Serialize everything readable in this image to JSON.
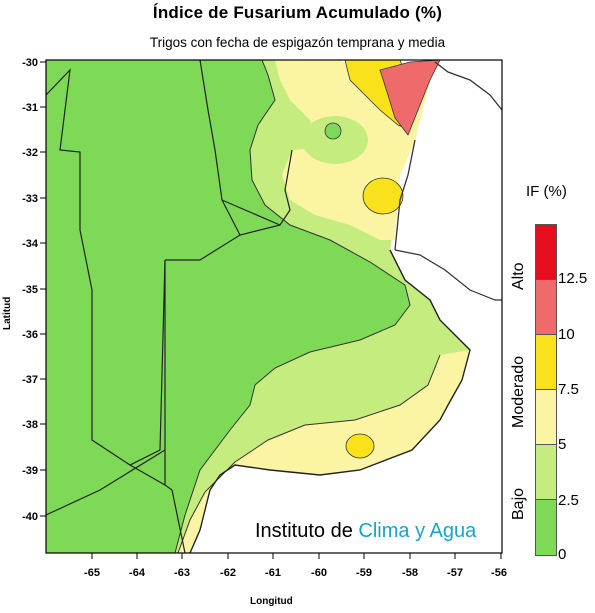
{
  "map": {
    "title": "Índice de Fusarium Acumulado (%)",
    "subtitle": "Trigos con fecha de espigazón temprana y media",
    "x_axis_label": "Longitud",
    "y_axis_label": "Latitud",
    "x_ticks": [
      "-65",
      "-64",
      "-63",
      "-62",
      "-61",
      "-60",
      "-59",
      "-58",
      "-57",
      "-56"
    ],
    "y_ticks": [
      "-30",
      "-31",
      "-32",
      "-33",
      "-34",
      "-35",
      "-36",
      "-37",
      "-38",
      "-39",
      "-40"
    ],
    "region_shown": "Pampas region of Argentina and Uruguay border",
    "zone_colors": {
      "bajo_0_2_5": "#7ed957",
      "bajo_2_5_5": "#c5ec7e",
      "moderado_5_7_5": "#fbf5a3",
      "moderado_7_5_10": "#f9e11c",
      "alto_10_12_5": "#ef6a6a",
      "alto_12_5_plus": "#e60d1e"
    }
  },
  "legend": {
    "title": "IF (%)",
    "values": [
      "12.5",
      "10",
      "7.5",
      "5",
      "2.5",
      "0"
    ],
    "categories": [
      "Alto",
      "Moderado",
      "Bajo"
    ]
  },
  "brand": {
    "prefix": "Instituto de ",
    "highlight": "Clima y Agua"
  }
}
